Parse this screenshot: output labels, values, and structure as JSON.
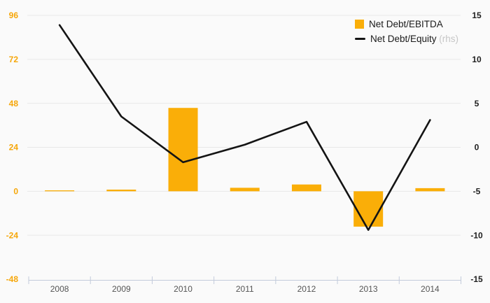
{
  "legend": {
    "items": [
      {
        "label": "Net Debt/EBITDA",
        "suffix": ""
      },
      {
        "label": "Net Debt/Equity",
        "suffix": " (rhs)"
      }
    ]
  },
  "chart_data": {
    "type": "combo",
    "categories": [
      "2008",
      "2009",
      "2010",
      "2011",
      "2012",
      "2013",
      "2014"
    ],
    "series": [
      {
        "name": "Net Debt/EBITDA",
        "type": "bar",
        "axis": "left",
        "color": "#FAAE08",
        "values": [
          0.5,
          0.9,
          45.5,
          1.9,
          3.7,
          -19.3,
          1.7
        ]
      },
      {
        "name": "Net Debt/Equity (rhs)",
        "type": "line",
        "axis": "right",
        "color": "#141414",
        "values": [
          13.9,
          3.5,
          -1.7,
          0.3,
          2.9,
          -9.4,
          3.1
        ]
      }
    ],
    "left_axis": {
      "min": -48,
      "max": 96,
      "ticks": [
        96,
        72,
        48,
        24,
        0,
        -24,
        -48
      ],
      "label_color": "#F6A70A"
    },
    "right_axis": {
      "min": -15,
      "max": 15,
      "ticks": [
        15,
        10,
        5,
        0,
        -5,
        -10,
        -15
      ],
      "label_color": "#1f1f1f"
    },
    "x_axis": {
      "line_color": "#c3cbdb",
      "label_color": "#555555"
    },
    "grid": {
      "show": true,
      "color": "#e8e8e8"
    },
    "background": "#fafafa",
    "legend_position": "top-right",
    "title": "",
    "xlabel": "",
    "ylabel": ""
  }
}
